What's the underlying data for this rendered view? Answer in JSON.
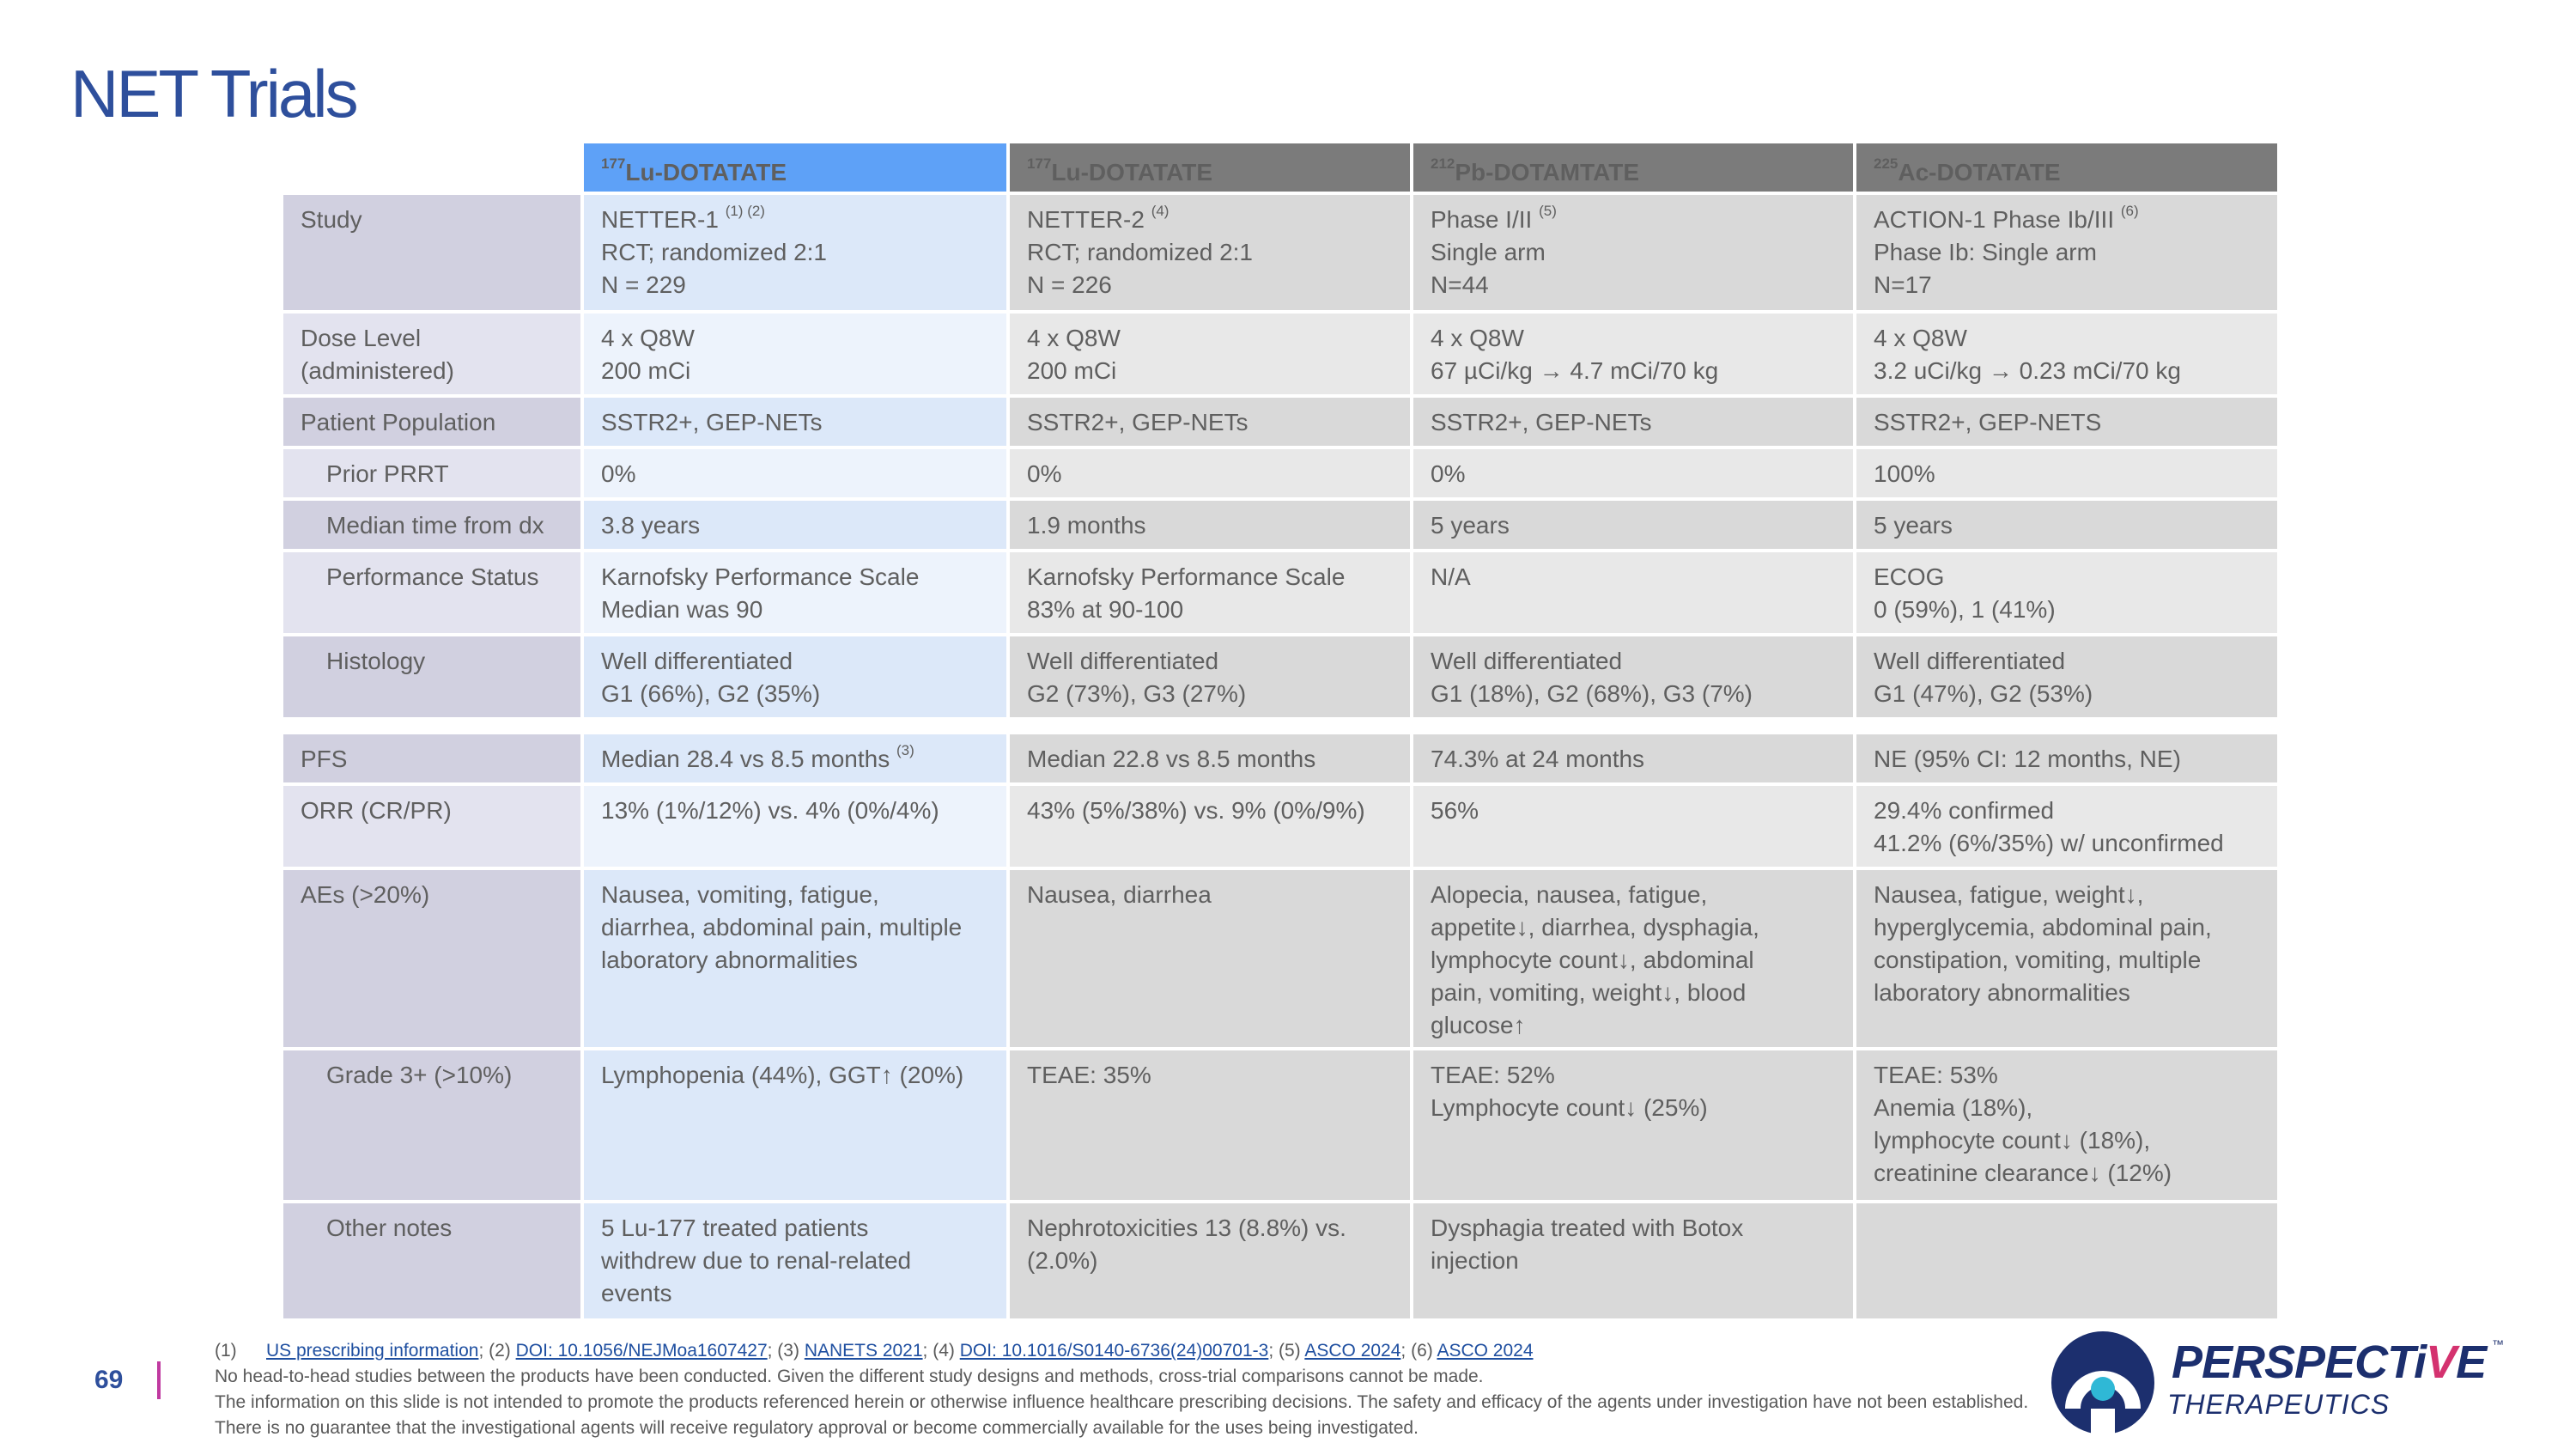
{
  "title": "NET Trials",
  "headers": [
    {
      "sup": "177",
      "name": "Lu-DOTATATE"
    },
    {
      "sup": "177",
      "name": "Lu-DOTATATE"
    },
    {
      "sup": "212",
      "name": "Pb-DOTAMTATE"
    },
    {
      "sup": "225",
      "name": "Ac-DOTATATE"
    }
  ],
  "rows": {
    "study": {
      "label": "Study",
      "c1": {
        "l1": "NETTER-1",
        "sup": "(1) (2)",
        "l2": "RCT; randomized 2:1",
        "l3": "N = 229"
      },
      "c2": {
        "l1": "NETTER-2",
        "sup": "(4)",
        "l2": "RCT; randomized 2:1",
        "l3": "N = 226"
      },
      "c3": {
        "l1": "Phase I/II",
        "sup": "(5)",
        "l2": "Single arm",
        "l3": "N=44"
      },
      "c4": {
        "l1": "ACTION-1 Phase Ib/III",
        "sup": "(6)",
        "l2": "Phase Ib: Single arm",
        "l3": "N=17"
      }
    },
    "dose": {
      "label1": "Dose Level",
      "label2": "(administered)",
      "c1": [
        "4 x Q8W",
        "200 mCi"
      ],
      "c2": [
        "4 x Q8W",
        "200 mCi"
      ],
      "c3": [
        "4 x Q8W",
        "67 µCi/kg → 4.7 mCi/70 kg"
      ],
      "c4": [
        "4 x Q8W",
        "3.2 uCi/kg → 0.23 mCi/70 kg"
      ]
    },
    "population": {
      "label": "Patient Population",
      "c1": "SSTR2+, GEP-NETs",
      "c2": "SSTR2+, GEP-NETs",
      "c3": "SSTR2+, GEP-NETs",
      "c4": "SSTR2+, GEP-NETS"
    },
    "prior_prrt": {
      "label": "Prior PRRT",
      "c1": "0%",
      "c2": "0%",
      "c3": "0%",
      "c4": "100%"
    },
    "median_time": {
      "label": "Median time from dx",
      "c1": "3.8 years",
      "c2": "1.9 months",
      "c3": "5 years",
      "c4": "5 years"
    },
    "performance": {
      "label": "Performance Status",
      "c1": [
        "Karnofsky Performance Scale",
        "Median was 90"
      ],
      "c2": [
        "Karnofsky Performance Scale",
        "83% at 90-100"
      ],
      "c3": [
        "N/A"
      ],
      "c4": [
        "ECOG",
        "0 (59%), 1 (41%)"
      ]
    },
    "histology": {
      "label": "Histology",
      "c1": [
        "Well differentiated",
        "G1 (66%), G2 (35%)"
      ],
      "c2": [
        "Well differentiated",
        "G2 (73%), G3 (27%)"
      ],
      "c3": [
        "Well differentiated",
        "G1 (18%), G2 (68%), G3 (7%)"
      ],
      "c4": [
        "Well differentiated",
        "G1 (47%), G2 (53%)"
      ]
    },
    "pfs": {
      "label": "PFS",
      "c1": "Median 28.4 vs 8.5 months",
      "c1_sup": "(3)",
      "c2": "Median 22.8 vs 8.5 months",
      "c3": "74.3% at 24 months",
      "c4": "NE (95% CI: 12 months, NE)"
    },
    "orr": {
      "label": "ORR (CR/PR)",
      "c1": [
        "13% (1%/12%) vs. 4% (0%/4%)"
      ],
      "c2": [
        "43% (5%/38%) vs. 9% (0%/9%)"
      ],
      "c3": [
        "56%"
      ],
      "c4": [
        "29.4% confirmed",
        "41.2% (6%/35%) w/ unconfirmed"
      ]
    },
    "aes": {
      "label": "AEs (>20%)",
      "c1": [
        "Nausea, vomiting, fatigue,",
        "diarrhea, abdominal pain, multiple",
        "laboratory abnormalities"
      ],
      "c2": [
        "Nausea, diarrhea"
      ],
      "c3": [
        "Alopecia, nausea, fatigue,",
        "appetite↓,  diarrhea, dysphagia,",
        "lymphocyte count↓, abdominal",
        "pain, vomiting, weight↓, blood",
        "glucose↑"
      ],
      "c4": [
        "Nausea, fatigue, weight↓,",
        "hyperglycemia, abdominal pain,",
        "constipation, vomiting, multiple",
        "laboratory abnormalities"
      ]
    },
    "grade3": {
      "label": "Grade 3+ (>10%)",
      "c1": [
        "Lymphopenia (44%), GGT↑ (20%)"
      ],
      "c2": [
        "TEAE: 35%"
      ],
      "c3": [
        "TEAE: 52%",
        "Lymphocyte count↓ (25%)"
      ],
      "c4": [
        "TEAE: 53%",
        "Anemia (18%),",
        "lymphocyte count↓ (18%),",
        "creatinine clearance↓ (12%)"
      ]
    },
    "other": {
      "label": "Other notes",
      "c1": [
        "5 Lu-177 treated  patients",
        "withdrew due to renal-related",
        "events"
      ],
      "c2": [
        "Nephrotoxicities 13 (8.8%) vs.",
        "(2.0%)"
      ],
      "c3": [
        "Dysphagia treated with Botox",
        "injection"
      ],
      "c4": []
    }
  },
  "footer": {
    "page_number": "69",
    "fn_num": "(1)",
    "refs": [
      "US prescribing information",
      "DOI: 10.1056/NEJMoa1607427",
      "NANETS 2021",
      "DOI: 10.1016/S0140-6736(24)00701-3",
      "ASCO 2024",
      "ASCO 2024"
    ],
    "sep_2": "; (2) ",
    "sep_3": "; (3) ",
    "sep_4": "; (4) ",
    "sep_5": "; (5) ",
    "sep_6": "; (6) ",
    "disclaimer1": "No head-to-head studies between the products have been conducted. Given the different study designs and methods, cross-trial comparisons cannot be made.",
    "disclaimer2": "The information on this slide is not intended to promote the products referenced herein or otherwise influence healthcare prescribing decisions. The safety and efficacy of the agents under investigation have not been established. There is no guarantee that the investigational agents will receive regulatory approval or become commercially available for the uses being investigated."
  },
  "logo": {
    "word_main": "PERSPECTi",
    "word_accent": "V",
    "word_end": "E",
    "tm": "™",
    "sub": "THERAPEUTICS",
    "colors": {
      "navy": "#1c2f6e",
      "pink": "#d4326f",
      "teal": "#2fb8d6"
    }
  }
}
